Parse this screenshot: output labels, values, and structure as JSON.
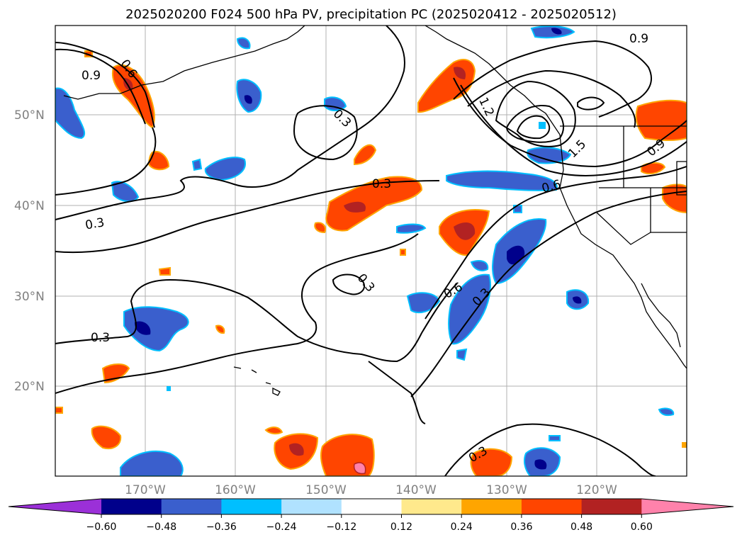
{
  "title": "2025020200 F024 500 hPa PV, precipitation PC (2025020412 - 2025020512)",
  "map": {
    "lat_ticks": [
      "50°N",
      "40°N",
      "30°N",
      "20°N"
    ],
    "lon_ticks": [
      "170°W",
      "160°W",
      "150°W",
      "140°W",
      "130°W",
      "120°W"
    ],
    "contour_labels": [
      "0.9",
      "0.6",
      "0.3",
      "0.3",
      "0.3",
      "0.3",
      "1.2",
      "1.5",
      "0.9",
      "0.6",
      "0.9",
      "0.6",
      "0.3",
      "0.3",
      "0.3"
    ],
    "colors": {
      "land_outline": "#000000",
      "grid": "#b0b0b0",
      "contour": "#000000"
    }
  },
  "colorbar": {
    "tick_labels": [
      "−0.60",
      "−0.48",
      "−0.36",
      "−0.24",
      "−0.12",
      "0.12",
      "0.24",
      "0.36",
      "0.48",
      "0.60"
    ],
    "colors": [
      "#9b30d8",
      "#00008b",
      "#3a5fcd",
      "#00bfff",
      "#b0e2ff",
      "#ffffff",
      "#ffe98c",
      "#ffa500",
      "#ff4500",
      "#b22222",
      "#ff82ab"
    ]
  }
}
